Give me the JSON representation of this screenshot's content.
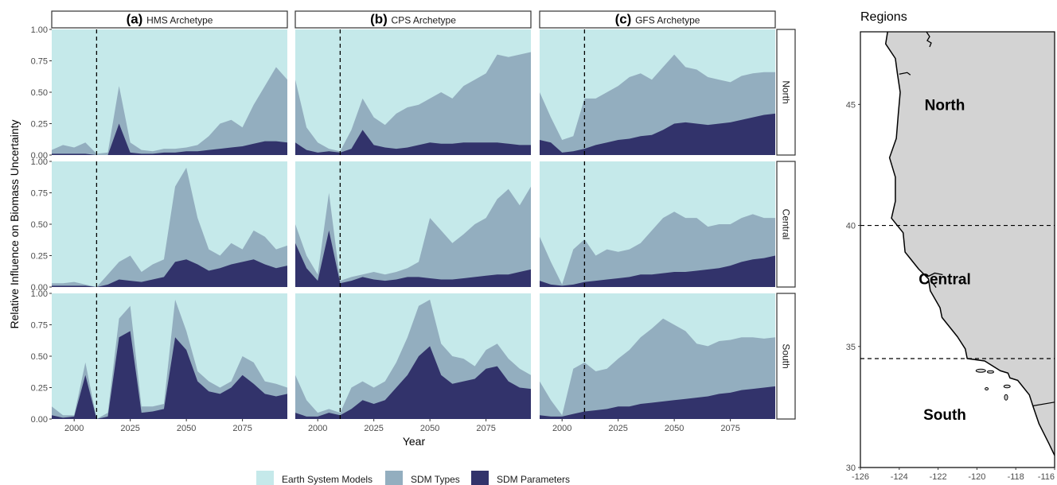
{
  "chart_data": [
    {
      "type": "area",
      "stacked": true,
      "ylabel": "Relative Influence on Biomass Uncertainty",
      "xlabel": "Year",
      "xlim": [
        1990,
        2095
      ],
      "ylim": [
        0,
        1
      ],
      "x_ticks": [
        2000,
        2025,
        2050,
        2075
      ],
      "y_ticks": [
        "0.00",
        "0.25",
        "0.50",
        "0.75",
        "1.00"
      ],
      "reference_line_year": 2010,
      "columns": [
        {
          "letter": "(a)",
          "title": "HMS Archetype"
        },
        {
          "letter": "(b)",
          "title": "CPS Archetype"
        },
        {
          "letter": "(c)",
          "title": "GFS Archetype"
        }
      ],
      "rows": [
        "North",
        "Central",
        "South"
      ],
      "legend": [
        {
          "name": "Earth System Models",
          "color": "#c5e9ea"
        },
        {
          "name": "SDM Types",
          "color": "#93aebf"
        },
        {
          "name": "SDM Parameters",
          "color": "#32336b"
        }
      ],
      "series_x": [
        1990,
        1995,
        2000,
        2005,
        2010,
        2015,
        2020,
        2025,
        2030,
        2035,
        2040,
        2045,
        2050,
        2055,
        2060,
        2065,
        2070,
        2075,
        2080,
        2085,
        2090,
        2095
      ],
      "panels": {
        "North": {
          "HMS Archetype": {
            "sdm_parameters_top": [
              0.01,
              0.01,
              0.01,
              0.01,
              0.0,
              0.0,
              0.25,
              0.02,
              0.01,
              0.01,
              0.02,
              0.02,
              0.03,
              0.03,
              0.04,
              0.05,
              0.06,
              0.07,
              0.09,
              0.11,
              0.11,
              0.1
            ],
            "sdm_types_top": [
              0.04,
              0.08,
              0.06,
              0.1,
              0.01,
              0.02,
              0.55,
              0.1,
              0.04,
              0.03,
              0.05,
              0.05,
              0.06,
              0.08,
              0.15,
              0.25,
              0.28,
              0.22,
              0.4,
              0.55,
              0.7,
              0.6
            ]
          },
          "CPS Archetype": {
            "sdm_parameters_top": [
              0.1,
              0.04,
              0.02,
              0.03,
              0.02,
              0.05,
              0.2,
              0.08,
              0.06,
              0.05,
              0.06,
              0.08,
              0.1,
              0.09,
              0.09,
              0.1,
              0.1,
              0.1,
              0.1,
              0.09,
              0.08,
              0.08
            ],
            "sdm_types_top": [
              0.6,
              0.22,
              0.1,
              0.05,
              0.03,
              0.2,
              0.45,
              0.3,
              0.24,
              0.33,
              0.38,
              0.4,
              0.45,
              0.5,
              0.45,
              0.55,
              0.6,
              0.65,
              0.8,
              0.78,
              0.8,
              0.82
            ]
          },
          "GFS Archetype": {
            "sdm_parameters_top": [
              0.12,
              0.1,
              0.02,
              0.03,
              0.05,
              0.08,
              0.1,
              0.12,
              0.13,
              0.15,
              0.16,
              0.2,
              0.25,
              0.26,
              0.25,
              0.24,
              0.25,
              0.26,
              0.28,
              0.3,
              0.32,
              0.33
            ],
            "sdm_types_top": [
              0.5,
              0.3,
              0.12,
              0.15,
              0.45,
              0.45,
              0.5,
              0.55,
              0.62,
              0.65,
              0.6,
              0.7,
              0.8,
              0.7,
              0.68,
              0.62,
              0.6,
              0.58,
              0.63,
              0.65,
              0.66,
              0.66
            ]
          }
        },
        "Central": {
          "HMS Archetype": {
            "sdm_parameters_top": [
              0.01,
              0.01,
              0.01,
              0.01,
              0.0,
              0.02,
              0.06,
              0.05,
              0.04,
              0.06,
              0.08,
              0.2,
              0.22,
              0.18,
              0.13,
              0.15,
              0.18,
              0.2,
              0.22,
              0.18,
              0.15,
              0.17
            ],
            "sdm_types_top": [
              0.03,
              0.03,
              0.04,
              0.02,
              0.0,
              0.1,
              0.2,
              0.25,
              0.12,
              0.18,
              0.22,
              0.8,
              0.95,
              0.55,
              0.3,
              0.25,
              0.35,
              0.3,
              0.45,
              0.4,
              0.3,
              0.33
            ]
          },
          "CPS Archetype": {
            "sdm_parameters_top": [
              0.35,
              0.15,
              0.05,
              0.45,
              0.03,
              0.05,
              0.08,
              0.06,
              0.05,
              0.06,
              0.08,
              0.08,
              0.07,
              0.06,
              0.06,
              0.07,
              0.08,
              0.09,
              0.1,
              0.1,
              0.12,
              0.14
            ],
            "sdm_types_top": [
              0.5,
              0.25,
              0.1,
              0.75,
              0.05,
              0.08,
              0.1,
              0.12,
              0.1,
              0.12,
              0.15,
              0.2,
              0.55,
              0.45,
              0.35,
              0.42,
              0.5,
              0.55,
              0.7,
              0.78,
              0.65,
              0.8
            ]
          },
          "GFS Archetype": {
            "sdm_parameters_top": [
              0.05,
              0.02,
              0.01,
              0.02,
              0.04,
              0.05,
              0.06,
              0.07,
              0.08,
              0.1,
              0.1,
              0.11,
              0.12,
              0.12,
              0.13,
              0.14,
              0.15,
              0.17,
              0.2,
              0.22,
              0.23,
              0.25
            ],
            "sdm_types_top": [
              0.4,
              0.2,
              0.02,
              0.3,
              0.38,
              0.25,
              0.3,
              0.28,
              0.3,
              0.35,
              0.45,
              0.55,
              0.6,
              0.55,
              0.55,
              0.48,
              0.5,
              0.5,
              0.55,
              0.58,
              0.55,
              0.55
            ]
          }
        },
        "South": {
          "HMS Archetype": {
            "sdm_parameters_top": [
              0.03,
              0.01,
              0.02,
              0.35,
              0.0,
              0.02,
              0.65,
              0.7,
              0.05,
              0.06,
              0.08,
              0.65,
              0.55,
              0.3,
              0.22,
              0.2,
              0.25,
              0.35,
              0.28,
              0.2,
              0.18,
              0.2
            ],
            "sdm_types_top": [
              0.1,
              0.03,
              0.03,
              0.45,
              0.0,
              0.05,
              0.8,
              0.9,
              0.1,
              0.1,
              0.12,
              0.95,
              0.7,
              0.38,
              0.3,
              0.25,
              0.3,
              0.5,
              0.45,
              0.3,
              0.28,
              0.25
            ]
          },
          "CPS Archetype": {
            "sdm_parameters_top": [
              0.05,
              0.02,
              0.02,
              0.05,
              0.03,
              0.08,
              0.15,
              0.12,
              0.15,
              0.25,
              0.35,
              0.5,
              0.58,
              0.35,
              0.28,
              0.3,
              0.32,
              0.4,
              0.42,
              0.3,
              0.25,
              0.24
            ],
            "sdm_types_top": [
              0.35,
              0.15,
              0.05,
              0.08,
              0.05,
              0.25,
              0.3,
              0.25,
              0.3,
              0.45,
              0.65,
              0.9,
              0.95,
              0.6,
              0.5,
              0.48,
              0.42,
              0.55,
              0.6,
              0.48,
              0.4,
              0.35
            ]
          },
          "GFS Archetype": {
            "sdm_parameters_top": [
              0.03,
              0.02,
              0.02,
              0.04,
              0.06,
              0.07,
              0.08,
              0.1,
              0.1,
              0.12,
              0.13,
              0.14,
              0.15,
              0.16,
              0.17,
              0.18,
              0.2,
              0.21,
              0.23,
              0.24,
              0.25,
              0.26
            ],
            "sdm_types_top": [
              0.3,
              0.15,
              0.03,
              0.4,
              0.45,
              0.38,
              0.4,
              0.48,
              0.55,
              0.65,
              0.72,
              0.8,
              0.75,
              0.7,
              0.6,
              0.58,
              0.62,
              0.63,
              0.65,
              0.65,
              0.64,
              0.65
            ]
          }
        }
      }
    },
    {
      "type": "map",
      "title": "Regions",
      "x_ticks": [
        "-126",
        "-124",
        "-122",
        "-120",
        "-118",
        "-116"
      ],
      "y_ticks": [
        "30",
        "35",
        "40",
        "45"
      ],
      "xlim": [
        -126,
        -116
      ],
      "ylim": [
        30,
        48
      ],
      "boundaries_lat": [
        40,
        34.5
      ],
      "regions": [
        {
          "name": "North",
          "lon": -121,
          "lat": 45
        },
        {
          "name": "Central",
          "lon": -121,
          "lat": 37.8
        },
        {
          "name": "South",
          "lon": -121,
          "lat": 32.2
        }
      ],
      "coast": [
        [
          -124.6,
          48
        ],
        [
          -124.7,
          47.5
        ],
        [
          -124.2,
          46.9
        ],
        [
          -124.1,
          46.3
        ],
        [
          -123.95,
          45.5
        ],
        [
          -124.05,
          44.6
        ],
        [
          -124.15,
          43.6
        ],
        [
          -124.5,
          42.8
        ],
        [
          -124.2,
          42
        ],
        [
          -124.2,
          41
        ],
        [
          -124.4,
          40.3
        ],
        [
          -123.8,
          39.7
        ],
        [
          -123.7,
          38.9
        ],
        [
          -123.0,
          38.2
        ],
        [
          -122.5,
          37.8
        ],
        [
          -122.4,
          37.3
        ],
        [
          -121.9,
          36.6
        ],
        [
          -121.8,
          36.2
        ],
        [
          -121.0,
          35.4
        ],
        [
          -120.6,
          34.9
        ],
        [
          -120.5,
          34.5
        ],
        [
          -119.6,
          34.4
        ],
        [
          -118.8,
          34.0
        ],
        [
          -118.4,
          33.9
        ],
        [
          -118.3,
          33.7
        ],
        [
          -117.9,
          33.6
        ],
        [
          -117.3,
          33.0
        ],
        [
          -117.1,
          32.5
        ],
        [
          -116.8,
          31.8
        ],
        [
          -116.3,
          31
        ],
        [
          -116,
          30.5
        ]
      ],
      "border": [
        [
          -117.1,
          32.55
        ],
        [
          -116,
          32.7
        ]
      ],
      "land_color": "#d3d3d3"
    }
  ]
}
